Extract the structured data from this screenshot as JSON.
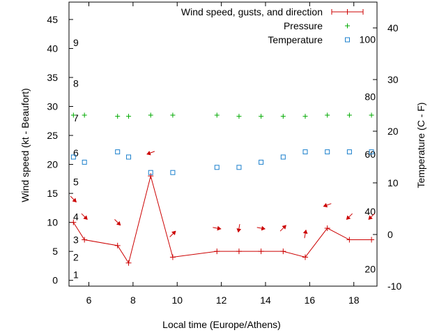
{
  "chart_data": {
    "type": "line",
    "xlabel": "Local time (Europe/Athens)",
    "ylabel": "Wind speed (kt - Beaufort)",
    "y2label": "Temperature (C - F)",
    "xlim": [
      5.1,
      19.05
    ],
    "ylim": [
      -1,
      48
    ],
    "y2lim": [
      -10,
      45
    ],
    "xticks": [
      6,
      8,
      10,
      12,
      14,
      16,
      18
    ],
    "yticks": [
      0,
      5,
      10,
      15,
      20,
      25,
      30,
      35,
      40,
      45
    ],
    "y2ticks": [
      -10,
      0,
      10,
      20,
      30,
      40
    ],
    "beaufort_labels": [
      {
        "label": "1",
        "kt": 1
      },
      {
        "label": "2",
        "kt": 4
      },
      {
        "label": "3",
        "kt": 7
      },
      {
        "label": "4",
        "kt": 11
      },
      {
        "label": "5",
        "kt": 17
      },
      {
        "label": "6",
        "kt": 22
      },
      {
        "label": "7",
        "kt": 28
      },
      {
        "label": "8",
        "kt": 34
      },
      {
        "label": "9",
        "kt": 41
      }
    ],
    "fahrenheit_labels": [
      {
        "label": "20",
        "f": 20
      },
      {
        "label": "40",
        "f": 40
      },
      {
        "label": "60",
        "f": 60
      },
      {
        "label": "80",
        "f": 80
      },
      {
        "label": "100",
        "f": 100
      }
    ],
    "legend": {
      "position": "top-right"
    },
    "series": [
      {
        "name": "Wind speed, gusts, and direction",
        "axis": "left",
        "color": "#cc0000",
        "x": [
          5.3,
          5.8,
          7.3,
          7.8,
          8.8,
          9.8,
          11.8,
          12.8,
          13.8,
          14.8,
          15.8,
          16.8,
          17.8,
          18.8
        ],
        "y": [
          10,
          7,
          6,
          3,
          18,
          4,
          5,
          5,
          5,
          5,
          4,
          9,
          7,
          7
        ],
        "arrow_y": [
          14,
          11,
          10,
          22,
          8,
          9,
          9,
          9,
          9,
          8,
          13,
          11,
          11
        ],
        "arrow_x": [
          5.3,
          5.8,
          7.3,
          8.8,
          9.8,
          11.8,
          12.8,
          13.8,
          14.8,
          15.8,
          16.8,
          17.8,
          18.8
        ],
        "arrow_dir_deg": [
          135,
          135,
          135,
          250,
          45,
          100,
          190,
          100,
          45,
          10,
          250,
          225,
          225
        ]
      },
      {
        "name": "Pressure",
        "axis": "left",
        "color": "#00aa00",
        "x": [
          5.3,
          5.8,
          7.3,
          7.8,
          8.8,
          9.8,
          11.8,
          12.8,
          13.8,
          14.8,
          15.8,
          16.8,
          17.8,
          18.8
        ],
        "y": [
          28.5,
          28.5,
          28.3,
          28.3,
          28.5,
          28.5,
          28.5,
          28.3,
          28.3,
          28.3,
          28.3,
          28.5,
          28.5,
          28.5
        ]
      },
      {
        "name": "Temperature",
        "axis": "right",
        "color": "#1a7fcc",
        "x": [
          5.3,
          5.8,
          7.3,
          7.8,
          8.8,
          9.8,
          11.8,
          12.8,
          13.8,
          14.8,
          15.8,
          16.8,
          17.8,
          18.8
        ],
        "y": [
          15,
          14,
          16,
          15,
          12,
          12,
          13,
          13,
          14,
          15,
          16,
          16,
          16,
          16
        ]
      }
    ]
  }
}
